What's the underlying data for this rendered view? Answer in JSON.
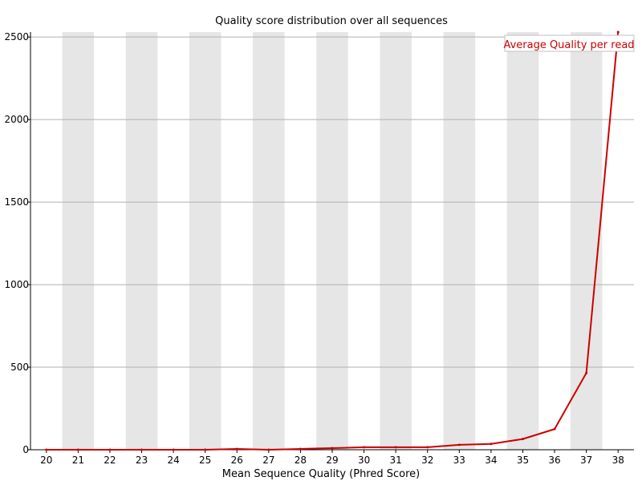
{
  "chart_data": {
    "type": "line",
    "title": "Quality score distribution over all sequences",
    "xlabel": "Mean Sequence Quality (Phred Score)",
    "ylabel": "",
    "x": [
      20,
      21,
      22,
      23,
      24,
      25,
      26,
      27,
      28,
      29,
      30,
      31,
      32,
      33,
      34,
      35,
      36,
      37,
      38
    ],
    "series": [
      {
        "name": "Average Quality per read",
        "color": "#cc0000",
        "values": [
          0,
          0,
          0,
          0,
          0,
          0,
          5,
          0,
          5,
          10,
          15,
          15,
          15,
          30,
          35,
          65,
          125,
          465,
          2530
        ]
      }
    ],
    "ylim": [
      0,
      2530
    ],
    "yticks": [
      0,
      500,
      1000,
      1500,
      2000,
      2500
    ],
    "grid": "horizontal",
    "band_color": "#e6e6e6",
    "legend_position": "top-right"
  }
}
